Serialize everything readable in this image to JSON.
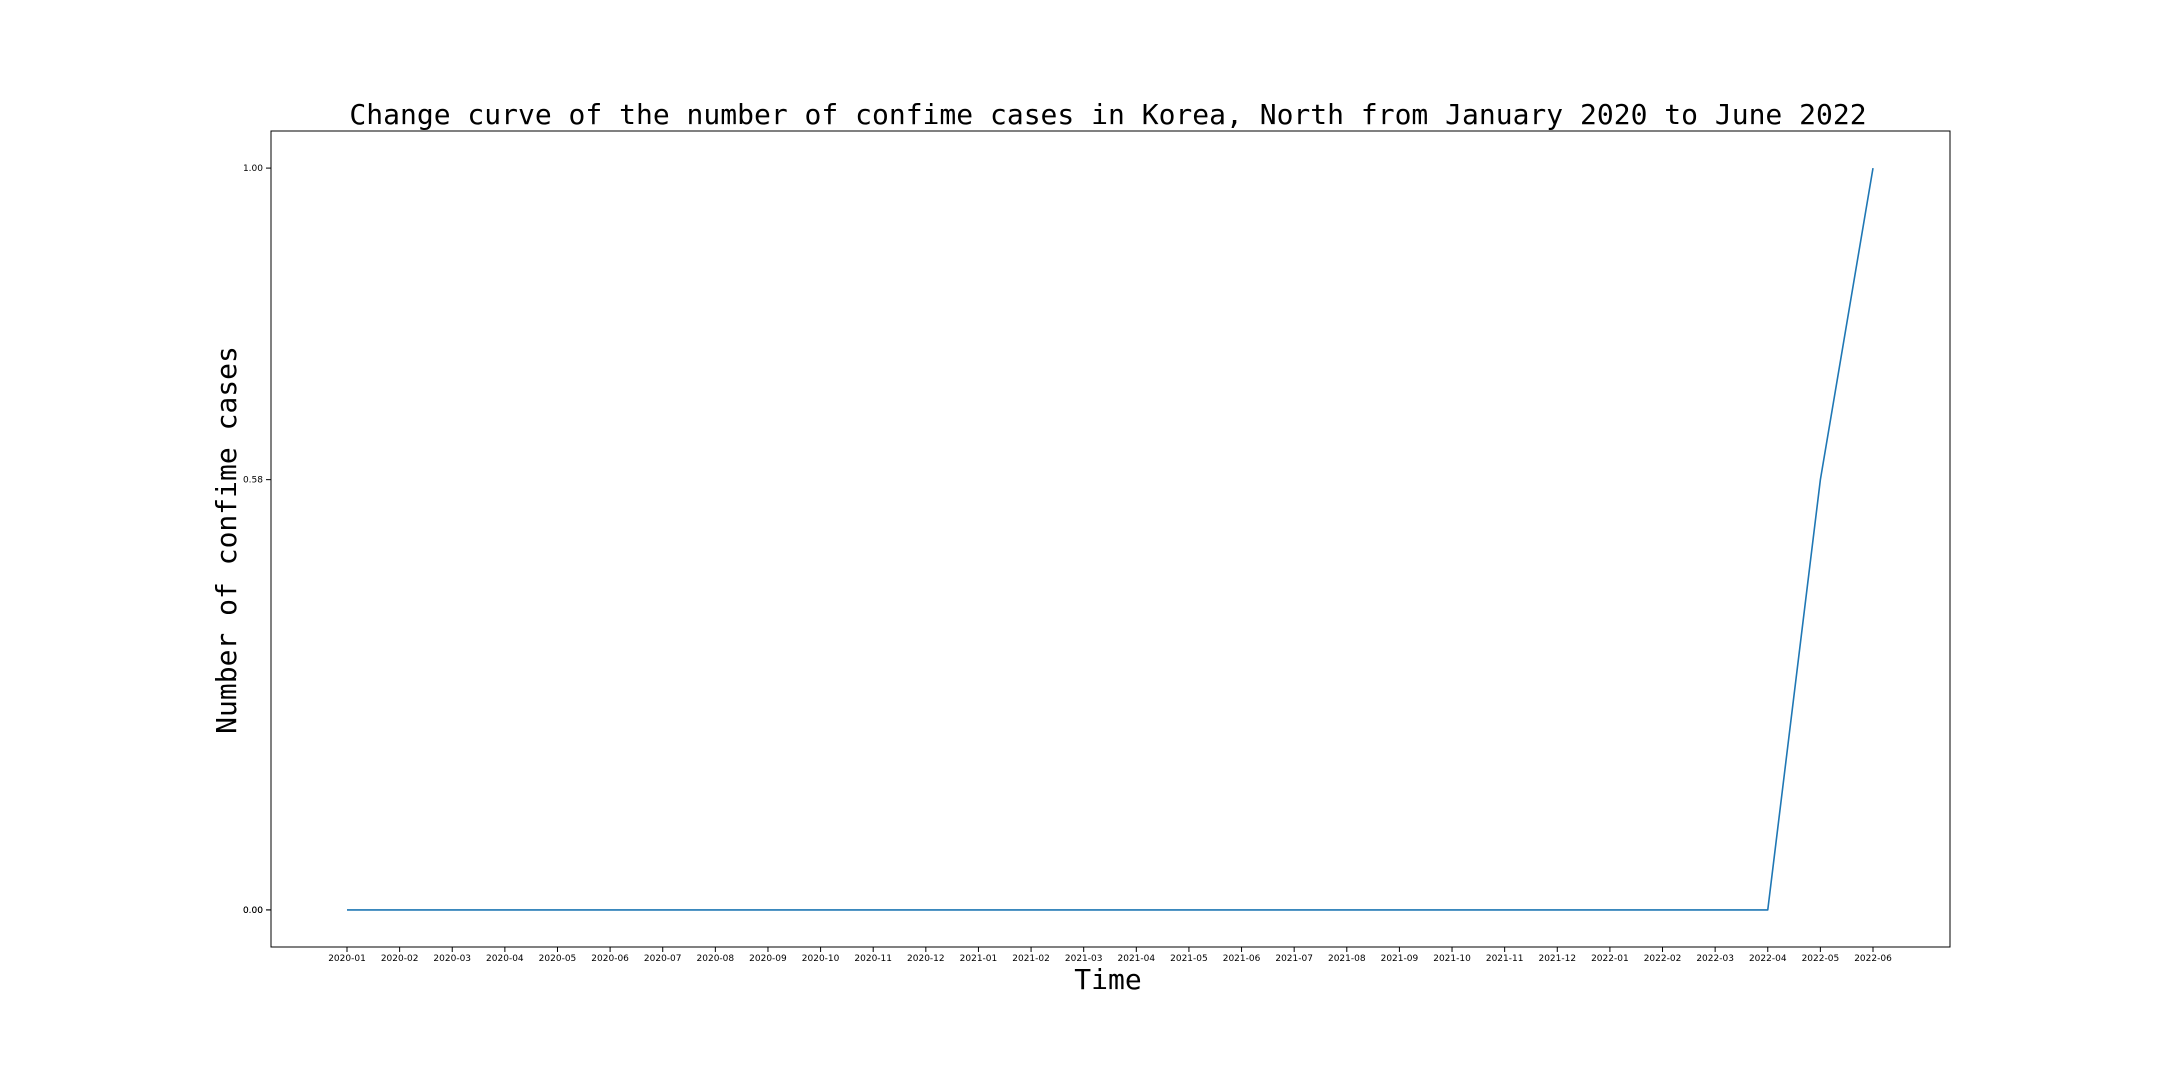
{
  "chart_data": {
    "type": "line",
    "title": "Change curve of the number of confime cases in Korea, North from January 2020 to June 2022",
    "xlabel": "Time",
    "ylabel": "Number of confime cases",
    "categories": [
      "2020-01",
      "2020-02",
      "2020-03",
      "2020-04",
      "2020-05",
      "2020-06",
      "2020-07",
      "2020-08",
      "2020-09",
      "2020-10",
      "2020-11",
      "2020-12",
      "2021-01",
      "2021-02",
      "2021-03",
      "2021-04",
      "2021-05",
      "2021-06",
      "2021-07",
      "2021-08",
      "2021-09",
      "2021-10",
      "2021-11",
      "2021-12",
      "2022-01",
      "2022-02",
      "2022-03",
      "2022-04",
      "2022-05",
      "2022-06"
    ],
    "series": [
      {
        "values": [
          0,
          0,
          0,
          0,
          0,
          0,
          0,
          0,
          0,
          0,
          0,
          0,
          0,
          0,
          0,
          0,
          0,
          0,
          0,
          0,
          0,
          0,
          0,
          0,
          0,
          0,
          0,
          0,
          0.58,
          1.0
        ]
      }
    ],
    "y_ticks": [
      "0.00",
      "0.00",
      "0.58",
      "1.00"
    ],
    "y_tick_values": [
      0,
      0,
      0.58,
      1.0
    ],
    "ylim": [
      -0.05,
      1.05
    ],
    "line_color": "#1f77b4",
    "grid": false,
    "legend": "none"
  }
}
